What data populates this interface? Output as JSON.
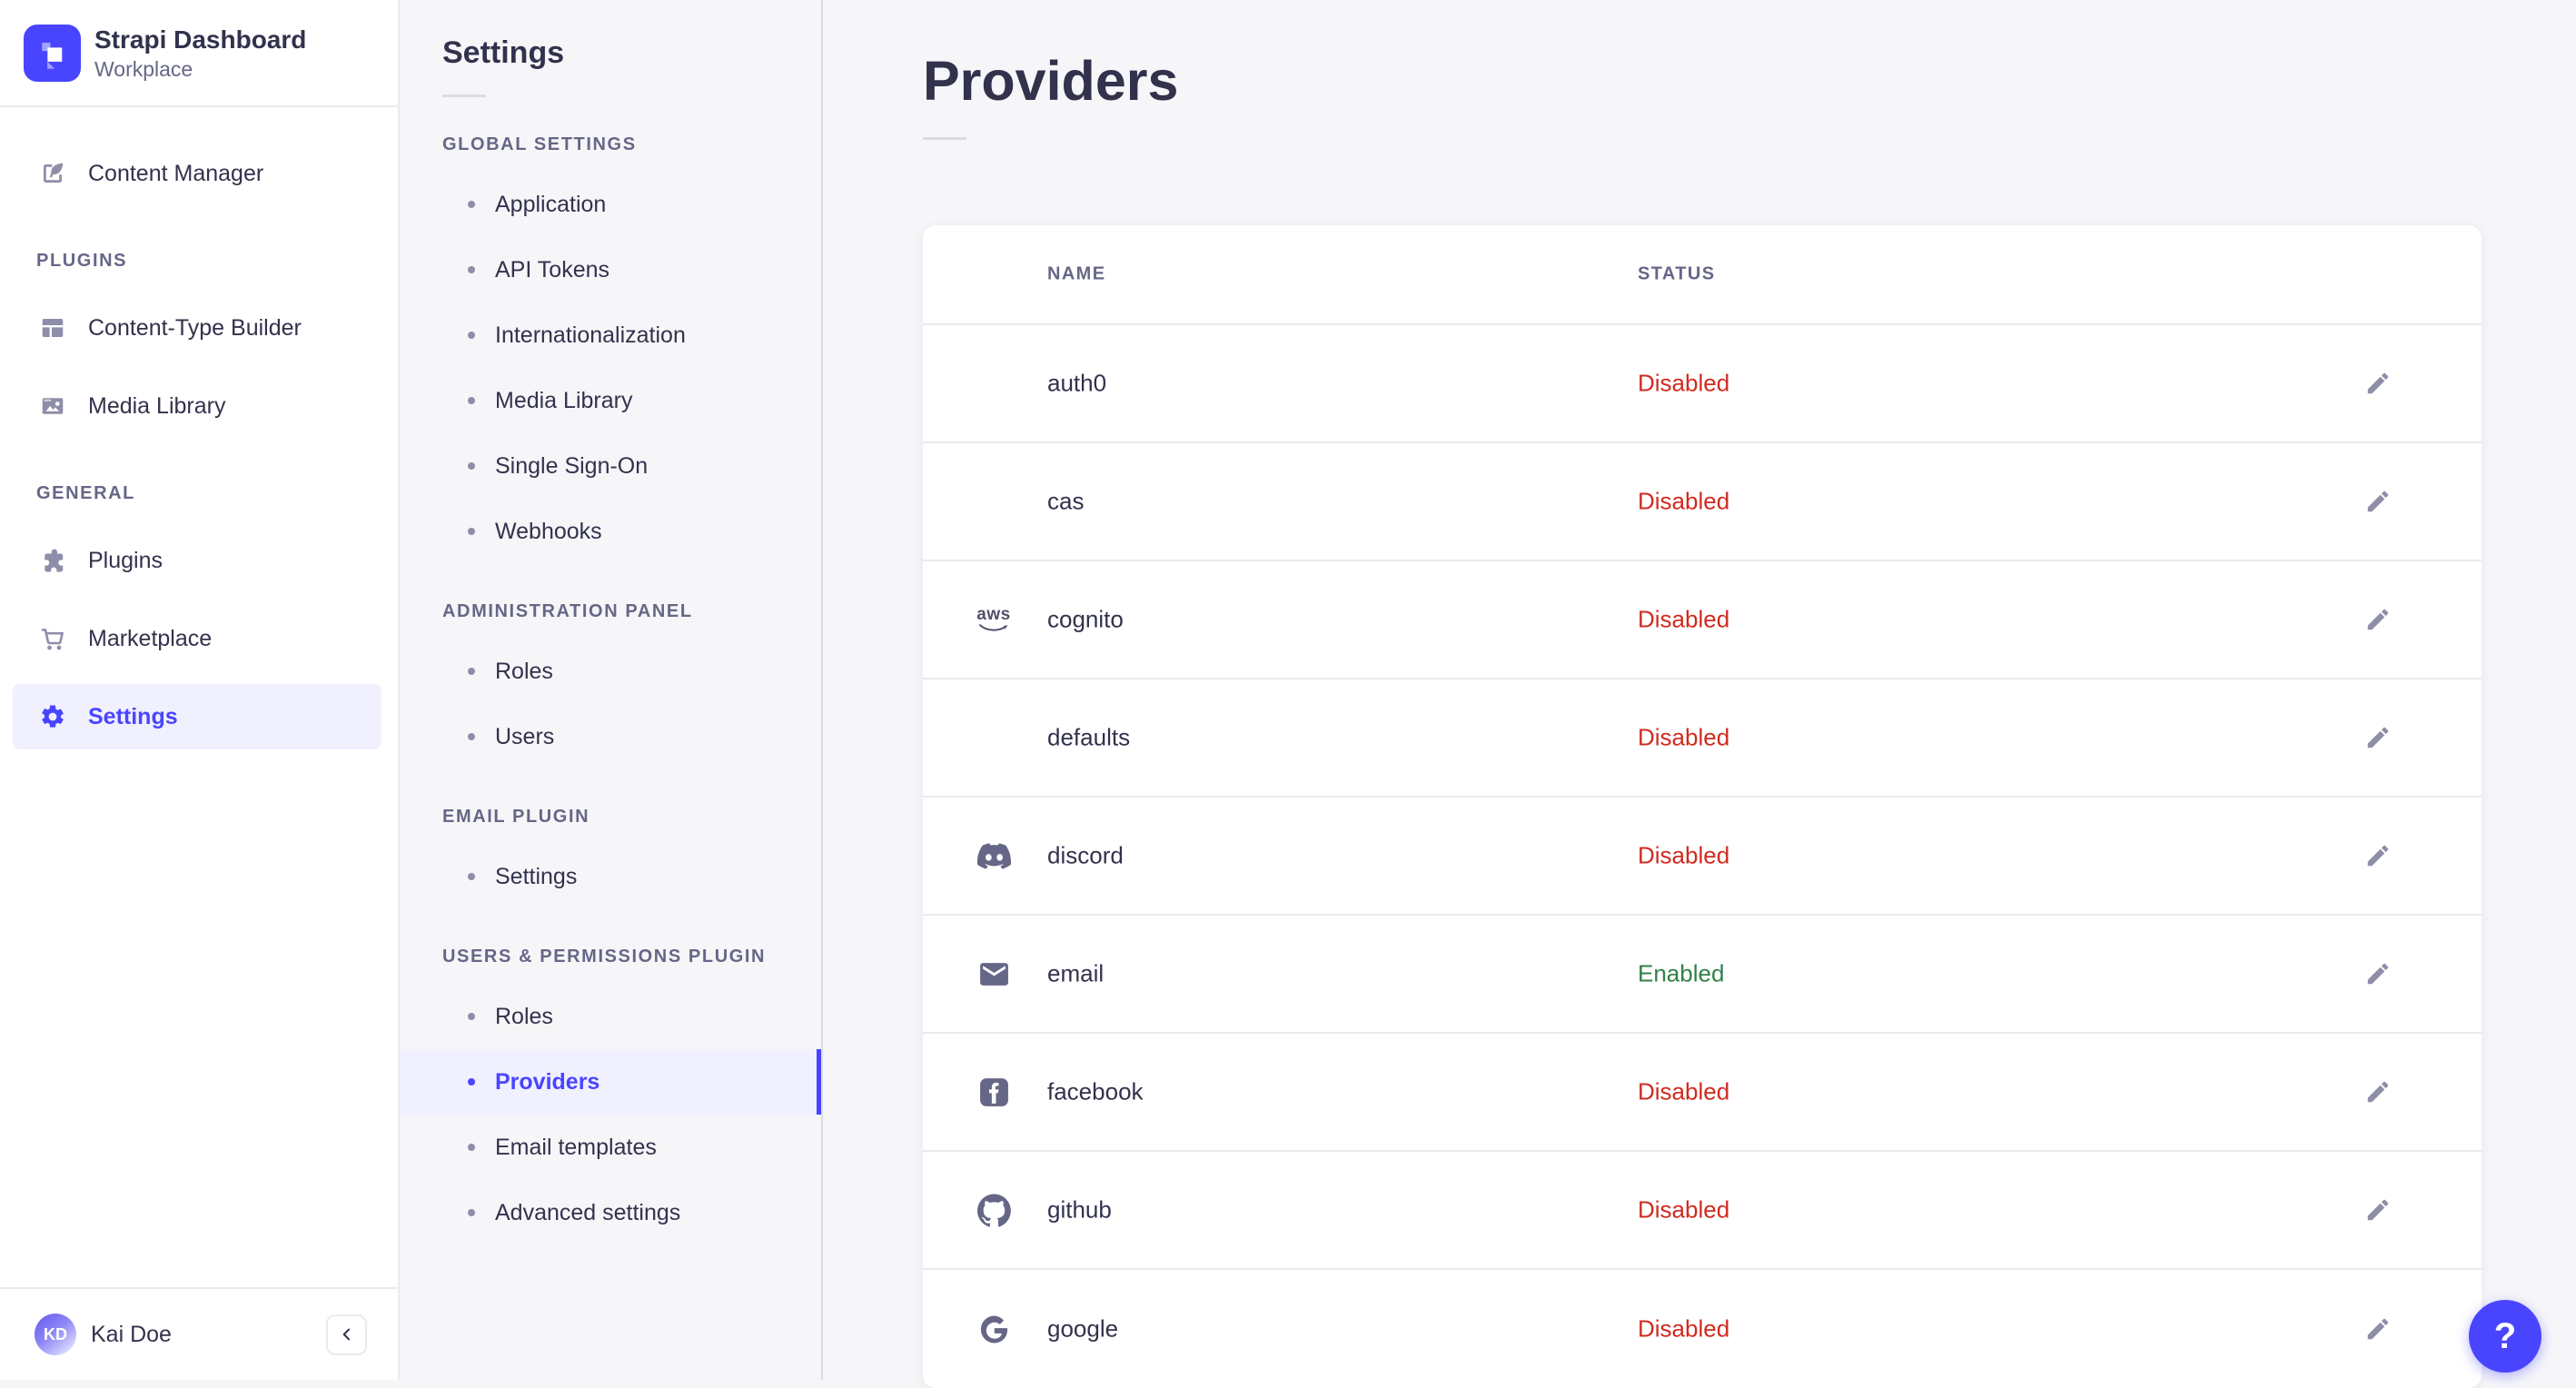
{
  "app": {
    "title": "Strapi Dashboard",
    "workspace": "Workplace",
    "logo_icon": "strapi-logo"
  },
  "sidebar": {
    "sections": [
      {
        "title": "",
        "items": [
          {
            "label": "Content Manager",
            "icon": "content-manager"
          }
        ]
      },
      {
        "title": "PLUGINS",
        "items": [
          {
            "label": "Content-Type Builder",
            "icon": "content-type-builder"
          },
          {
            "label": "Media Library",
            "icon": "media-library"
          }
        ]
      },
      {
        "title": "GENERAL",
        "items": [
          {
            "label": "Plugins",
            "icon": "plugins"
          },
          {
            "label": "Marketplace",
            "icon": "marketplace"
          },
          {
            "label": "Settings",
            "icon": "settings",
            "active": true
          }
        ]
      }
    ],
    "user": {
      "name": "Kai Doe",
      "initials": "KD"
    },
    "collapse_icon": "chevron-left"
  },
  "subnav": {
    "title": "Settings",
    "sections": [
      {
        "title": "GLOBAL SETTINGS",
        "items": [
          {
            "label": "Application"
          },
          {
            "label": "API Tokens"
          },
          {
            "label": "Internationalization"
          },
          {
            "label": "Media Library"
          },
          {
            "label": "Single Sign-On"
          },
          {
            "label": "Webhooks"
          }
        ]
      },
      {
        "title": "ADMINISTRATION PANEL",
        "items": [
          {
            "label": "Roles"
          },
          {
            "label": "Users"
          }
        ]
      },
      {
        "title": "EMAIL PLUGIN",
        "items": [
          {
            "label": "Settings"
          }
        ]
      },
      {
        "title": "USERS & PERMISSIONS PLUGIN",
        "items": [
          {
            "label": "Roles"
          },
          {
            "label": "Providers",
            "active": true
          },
          {
            "label": "Email templates"
          },
          {
            "label": "Advanced settings"
          }
        ]
      }
    ]
  },
  "main": {
    "title": "Providers",
    "table": {
      "columns": [
        "NAME",
        "STATUS"
      ],
      "rows": [
        {
          "name": "auth0",
          "icon": "",
          "status": "Disabled"
        },
        {
          "name": "cas",
          "icon": "",
          "status": "Disabled"
        },
        {
          "name": "cognito",
          "icon": "aws",
          "status": "Disabled"
        },
        {
          "name": "defaults",
          "icon": "",
          "status": "Disabled"
        },
        {
          "name": "discord",
          "icon": "discord",
          "status": "Disabled"
        },
        {
          "name": "email",
          "icon": "email",
          "status": "Enabled"
        },
        {
          "name": "facebook",
          "icon": "facebook",
          "status": "Disabled"
        },
        {
          "name": "github",
          "icon": "github",
          "status": "Disabled"
        },
        {
          "name": "google",
          "icon": "google",
          "status": "Disabled"
        }
      ],
      "edit_icon": "pencil"
    },
    "help_label": "?"
  },
  "colors": {
    "accent": "#4945ff",
    "active_background": "#f0f0ff",
    "status_colors": {
      "Enabled": "#328048",
      "Disabled": "#d02b20"
    }
  }
}
